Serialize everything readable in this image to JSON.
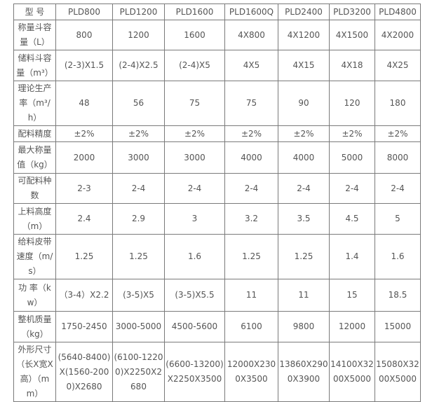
{
  "header": {
    "label": "型 号",
    "models": [
      "PLD800",
      "PLD1200",
      "PLD1600",
      "PLD1600Q",
      "PLD2400",
      "PLD3200",
      "PLD4800"
    ]
  },
  "rows": [
    {
      "label": "称量斗容量（L）",
      "values": [
        "800",
        "1200",
        "1600",
        "4X800",
        "4X1200",
        "4X1500",
        "4X2000"
      ]
    },
    {
      "label": "储料斗容量（m³）",
      "values": [
        "(2-3)X1.5",
        "(2-4)X2.5",
        "(2-4)X5",
        "4X5",
        "4X15",
        "4X18",
        "4X25"
      ]
    },
    {
      "label": "理论生产率（m³/h）",
      "values": [
        "48",
        "56",
        "75",
        "75",
        "90",
        "120",
        "180"
      ]
    },
    {
      "label": "配料精度",
      "values": [
        "±2%",
        "±2%",
        "±2%",
        "±2%",
        "±2%",
        "±2%",
        "±2%"
      ]
    },
    {
      "label": "最大称量值（kg）",
      "values": [
        "2000",
        "3000",
        "3000",
        "4000",
        "4000",
        "5000",
        "8000"
      ]
    },
    {
      "label": "可配料种数",
      "values": [
        "2-3",
        "2-4",
        "2-4",
        "2-4",
        "2-4",
        "2-4",
        "2-4"
      ]
    },
    {
      "label": "上料高度（m）",
      "values": [
        "2.4",
        "2.9",
        "3",
        "3.2",
        "3.5",
        "4.5",
        "5"
      ]
    },
    {
      "label": "给料皮带速度（m/s）",
      "values": [
        "1.25",
        "1.25",
        "1.6",
        "1.25",
        "1.25",
        "1.4",
        "1.6"
      ]
    },
    {
      "label": "功 率（kw）",
      "values": [
        "（3-4）X2.2",
        "(3-5)X5",
        "(3-5)X5.5",
        "11",
        "11",
        "15",
        "18.5"
      ]
    },
    {
      "label": "整机质量（kg）",
      "values": [
        "1750-2450",
        "3000-5000",
        "4500-5600",
        "6100",
        "9800",
        "12000",
        "15000"
      ]
    },
    {
      "label": "外形尺寸（长X宽X高）（mm）",
      "values": [
        "(5640-8400)X(1560-2000)X2680",
        "(6100-12200)X2250X2680",
        "(6600-13200)X2250X3500",
        "12000X2300X3500",
        "13860X2900X3900",
        "14100X3200X5000",
        "15080X3200X5000"
      ]
    }
  ]
}
